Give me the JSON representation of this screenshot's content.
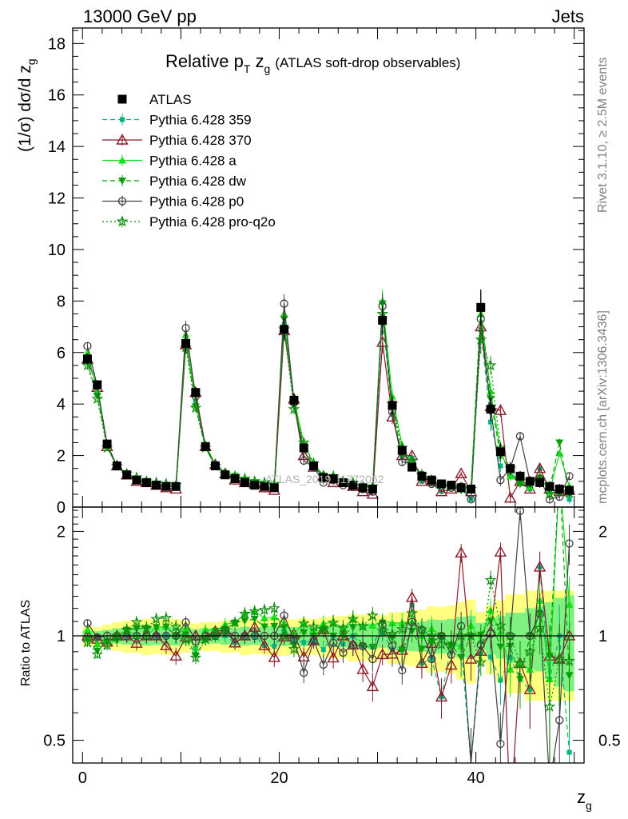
{
  "header": {
    "left": "13000 GeV pp",
    "right": "Jets"
  },
  "side_labels": {
    "rivet": "Rivet 3.1.10, ≥ 2.5M events",
    "mcplots": "mcplots.cern.ch [arXiv:1306.3436]"
  },
  "watermark": "ATLAS_2019_I1772062",
  "colors": {
    "ATLAS": "#000000",
    "359": "#00b482",
    "370": "#8b1a2b",
    "a": "#16e016",
    "dw": "#0aa00a",
    "p0": "#404040",
    "pro-q2o": "#0f8c0f",
    "band_yellow": "#ffff80",
    "band_green": "#80f080"
  },
  "chart_data": [
    {
      "type": "line",
      "title_main": "Relative p",
      "title_sub1": "T",
      "title_mid": " z",
      "title_sub2": "g",
      "title_paren": "(ATLAS soft-drop observables)",
      "ylabel": "(1/σ) dσ/d z",
      "ylabel_sub": "g",
      "xlabel": "z",
      "xlabel_sub": "g",
      "xlim": [
        -1,
        51
      ],
      "ylim": [
        0,
        18.6
      ],
      "yticks": [
        0,
        2,
        4,
        6,
        8,
        10,
        12,
        14,
        16,
        18
      ],
      "x": [
        0.5,
        1.5,
        2.5,
        3.5,
        4.5,
        5.5,
        6.5,
        7.5,
        8.5,
        9.5,
        10.5,
        11.5,
        12.5,
        13.5,
        14.5,
        15.5,
        16.5,
        17.5,
        18.5,
        19.5,
        20.5,
        21.5,
        22.5,
        23.5,
        24.5,
        25.5,
        26.5,
        27.5,
        28.5,
        29.5,
        30.5,
        31.5,
        32.5,
        33.5,
        34.5,
        35.5,
        36.5,
        37.5,
        38.5,
        39.5,
        40.5,
        41.5,
        42.5,
        43.5,
        44.5,
        45.5,
        46.5,
        47.5,
        48.5,
        49.5
      ],
      "series": [
        {
          "name": "ATLAS",
          "key": "ATLAS",
          "values": [
            5.75,
            4.75,
            2.45,
            1.6,
            1.25,
            1.05,
            0.95,
            0.85,
            0.8,
            0.8,
            6.35,
            4.45,
            2.35,
            1.6,
            1.25,
            1.1,
            0.95,
            0.85,
            0.8,
            0.75,
            6.9,
            4.15,
            2.3,
            1.6,
            1.15,
            1.1,
            0.95,
            0.85,
            0.75,
            0.7,
            7.25,
            3.95,
            2.2,
            1.55,
            1.2,
            1.05,
            0.9,
            0.85,
            0.75,
            0.7,
            7.75,
            3.8,
            2.15,
            1.5,
            1.2,
            1.0,
            0.95,
            0.8,
            0.7,
            0.65
          ],
          "errors": [
            0.2,
            0.15,
            0.1,
            0.08,
            0.07,
            0.06,
            0.06,
            0.05,
            0.05,
            0.05,
            0.35,
            0.2,
            0.12,
            0.08,
            0.07,
            0.06,
            0.06,
            0.05,
            0.05,
            0.05,
            0.45,
            0.25,
            0.15,
            0.1,
            0.08,
            0.08,
            0.07,
            0.07,
            0.06,
            0.06,
            0.55,
            0.35,
            0.2,
            0.15,
            0.12,
            0.12,
            0.1,
            0.1,
            0.1,
            0.1,
            0.7,
            0.45,
            0.3,
            0.25,
            0.2,
            0.2,
            0.2,
            0.2,
            0.2,
            0.2
          ]
        },
        {
          "name": "Pythia 6.428 359",
          "key": "359",
          "values": [
            5.9,
            4.7,
            2.35,
            1.6,
            1.25,
            1.05,
            0.95,
            0.85,
            0.8,
            0.8,
            6.45,
            4.1,
            2.3,
            1.6,
            1.25,
            1.05,
            0.95,
            0.85,
            0.75,
            0.7,
            7.1,
            4.05,
            2.2,
            1.55,
            1.05,
            1.1,
            0.9,
            0.85,
            0.7,
            0.65,
            7.4,
            3.6,
            2.0,
            1.9,
            1.0,
            0.9,
            0.6,
            0.8,
            0.7,
            0.3,
            6.9,
            3.3,
            1.6,
            1.3,
            0.9,
            0.7,
            1.5,
            0.6,
            0.7,
            0.3
          ]
        },
        {
          "name": "Pythia 6.428 370",
          "key": "370",
          "values": [
            5.75,
            4.65,
            2.35,
            1.6,
            1.25,
            1.0,
            0.95,
            0.85,
            0.75,
            0.7,
            6.3,
            4.45,
            2.35,
            1.65,
            1.3,
            1.05,
            0.95,
            0.9,
            0.75,
            0.65,
            6.85,
            4.2,
            2.0,
            1.55,
            1.2,
            0.95,
            0.95,
            0.8,
            0.6,
            0.5,
            6.4,
            3.5,
            2.0,
            2.0,
            1.0,
            1.0,
            0.6,
            0.7,
            1.3,
            0.6,
            7.0,
            3.9,
            3.75,
            0.35,
            1.0,
            0.7,
            1.5,
            0.7,
            0.6,
            0.65
          ]
        },
        {
          "name": "Pythia 6.428 a",
          "key": "a",
          "values": [
            6.0,
            4.5,
            2.4,
            1.6,
            1.3,
            1.05,
            0.95,
            0.9,
            0.85,
            0.8,
            6.7,
            4.0,
            2.45,
            1.65,
            1.35,
            1.2,
            1.1,
            1.0,
            0.9,
            0.85,
            7.5,
            4.2,
            2.5,
            1.65,
            1.25,
            1.2,
            1.0,
            0.95,
            0.8,
            0.75,
            8.0,
            4.3,
            2.4,
            1.7,
            1.2,
            1.1,
            0.9,
            0.8,
            0.7,
            0.75,
            7.5,
            4.5,
            2.2,
            1.2,
            1.0,
            0.8,
            1.2,
            0.6,
            2.1,
            0.8
          ]
        },
        {
          "name": "Pythia 6.428 dw",
          "key": "dw",
          "values": [
            5.6,
            4.3,
            2.35,
            1.55,
            1.3,
            1.1,
            1.0,
            0.9,
            0.85,
            0.8,
            6.4,
            3.9,
            2.3,
            1.65,
            1.3,
            1.2,
            1.05,
            0.95,
            0.85,
            0.8,
            7.3,
            3.9,
            2.35,
            1.6,
            1.2,
            1.1,
            0.95,
            0.9,
            0.7,
            0.65,
            7.9,
            3.9,
            2.0,
            1.6,
            1.1,
            1.0,
            0.9,
            0.8,
            0.65,
            0.7,
            7.8,
            4.2,
            2.0,
            1.4,
            0.9,
            1.0,
            1.1,
            0.7,
            2.5,
            0.5
          ]
        },
        {
          "name": "Pythia 6.428 p0",
          "key": "p0",
          "values": [
            6.25,
            4.7,
            2.45,
            1.6,
            1.25,
            1.05,
            0.95,
            0.85,
            0.8,
            0.8,
            6.95,
            4.3,
            2.35,
            1.6,
            1.3,
            1.1,
            0.95,
            0.85,
            0.8,
            0.75,
            7.9,
            4.05,
            1.8,
            1.55,
            0.95,
            1.05,
            0.85,
            0.8,
            0.7,
            0.6,
            7.8,
            3.7,
            1.75,
            1.7,
            1.25,
            0.9,
            0.9,
            0.75,
            0.8,
            0.3,
            7.3,
            3.85,
            1.05,
            1.5,
            2.75,
            1.0,
            1.1,
            0.3,
            0.4,
            1.2
          ]
        },
        {
          "name": "Pythia 6.428 pro-q2o",
          "key": "pro-q2o",
          "values": [
            5.5,
            4.2,
            2.3,
            1.6,
            1.3,
            1.15,
            1.0,
            0.95,
            0.9,
            0.85,
            6.2,
            3.85,
            2.3,
            1.6,
            1.3,
            1.2,
            1.1,
            1.0,
            0.95,
            0.9,
            6.9,
            3.8,
            2.5,
            1.7,
            1.2,
            1.2,
            1.0,
            0.95,
            0.8,
            0.8,
            7.5,
            4.0,
            2.3,
            1.8,
            1.25,
            1.05,
            0.85,
            0.8,
            0.75,
            0.7,
            6.5,
            5.5,
            2.3,
            1.5,
            1.0,
            0.9,
            1.0,
            0.5,
            0.6,
            0.55
          ]
        }
      ]
    },
    {
      "type": "line",
      "ylabel": "Ratio to ATLAS",
      "ylim": [
        0.43,
        2.35
      ],
      "yticks": [
        0.5,
        1,
        2
      ],
      "yticklabels": [
        "0.5",
        "1",
        "2"
      ]
    }
  ],
  "xticks": [
    0,
    20,
    40
  ],
  "xticklabels": [
    "0",
    "20",
    "40"
  ]
}
